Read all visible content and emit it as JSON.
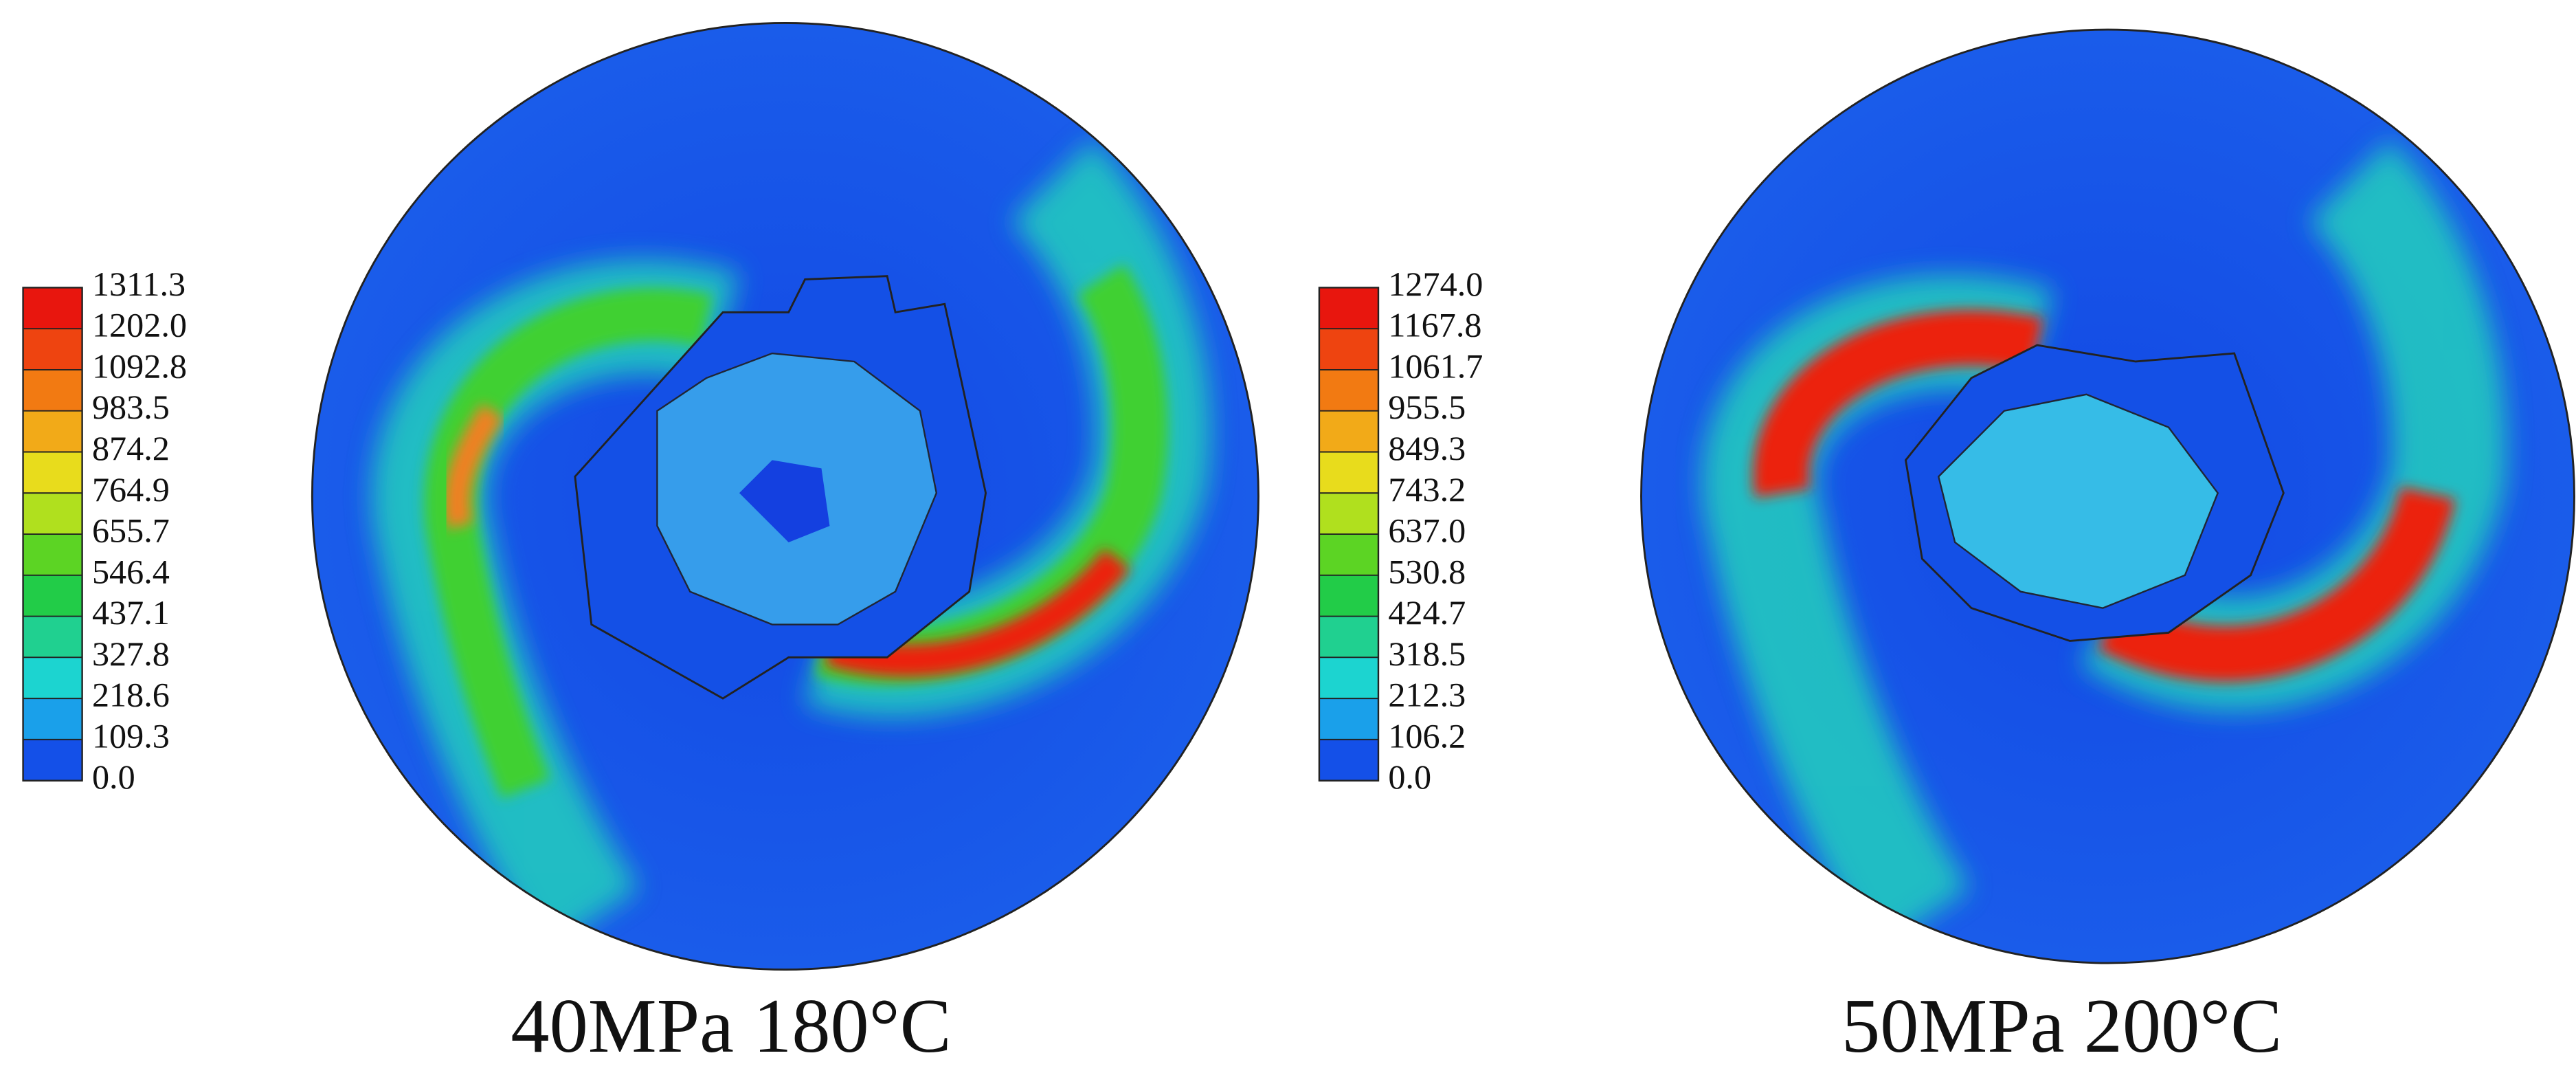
{
  "panels": [
    {
      "label": "40MPa 180°C",
      "colorbar": [
        "1311.3",
        "1202.0",
        "1092.8",
        "983.5",
        "874.2",
        "764.9",
        "655.7",
        "546.4",
        "437.1",
        "327.8",
        "218.6",
        "109.3",
        "0.0"
      ]
    },
    {
      "label": "50MPa 200°C",
      "colorbar": [
        "1274.0",
        "1167.8",
        "1061.7",
        "955.5",
        "849.3",
        "743.2",
        "637.0",
        "530.8",
        "424.7",
        "318.5",
        "212.3",
        "106.2",
        "0.0"
      ]
    }
  ]
}
